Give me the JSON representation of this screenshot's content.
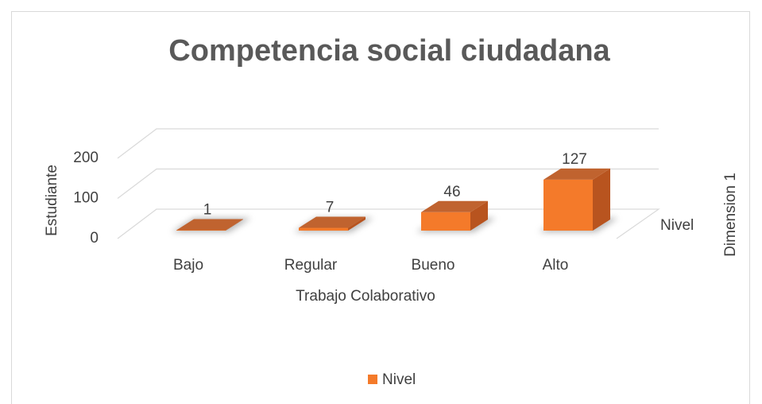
{
  "chart_data": {
    "type": "bar3d",
    "title": "Competencia social ciudadana",
    "x_label": "Trabajo Colaborativo",
    "y_label": "Estudiante",
    "z_label": "Dimension 1",
    "z_categories": [
      "Nivel"
    ],
    "categories": [
      "Bajo",
      "Regular",
      "Bueno",
      "Alto"
    ],
    "series": [
      {
        "name": "Nivel",
        "color": "#f47a2a",
        "values": [
          1,
          7,
          46,
          127
        ]
      }
    ],
    "ylim": [
      0,
      200
    ],
    "yticks": [
      0,
      100,
      200
    ],
    "grid": true,
    "legend": "bottom"
  }
}
